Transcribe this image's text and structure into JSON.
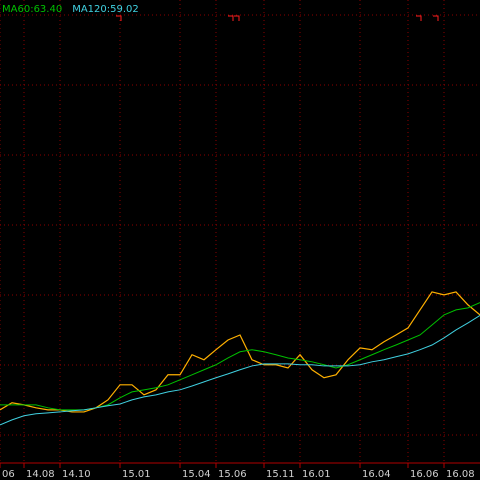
{
  "chart_data": {
    "type": "line",
    "categories": [
      "06",
      null,
      "14.08",
      null,
      null,
      "14.10",
      null,
      null,
      null,
      null,
      "15.01",
      null,
      null,
      null,
      null,
      "15.04",
      null,
      null,
      "15.06",
      null,
      null,
      null,
      "15.11",
      null,
      null,
      "16.01",
      null,
      null,
      null,
      null,
      "16.04",
      null,
      null,
      null,
      "16.06",
      null,
      null,
      "16.08",
      null,
      null,
      null
    ],
    "ylim": [
      10,
      166
    ],
    "series": [
      {
        "color": "#ffb000",
        "values": [
          27.0,
          29.4,
          28.7,
          27.7,
          27.0,
          27.0,
          26.3,
          26.3,
          27.7,
          30.4,
          35.5,
          35.5,
          32.1,
          33.8,
          38.9,
          38.9,
          45.7,
          44.0,
          47.4,
          50.7,
          52.4,
          44.0,
          42.3,
          42.3,
          41.2,
          45.7,
          40.6,
          37.9,
          38.9,
          44.0,
          48.0,
          47.4,
          50.1,
          52.4,
          54.8,
          60.9,
          67.0,
          66.0,
          67.0,
          62.6,
          59.2
        ]
      },
      {
        "name": "MA60:63.40",
        "color": "#00c000",
        "values": [
          28.7,
          28.7,
          28.7,
          28.7,
          27.7,
          27.0,
          27.0,
          27.0,
          27.7,
          28.7,
          31.1,
          33.1,
          33.8,
          34.5,
          35.5,
          37.2,
          38.9,
          40.6,
          42.3,
          44.6,
          46.7,
          47.4,
          46.7,
          45.7,
          44.6,
          44.0,
          43.3,
          42.3,
          41.2,
          42.3,
          44.0,
          45.7,
          47.4,
          49.0,
          50.7,
          52.4,
          55.8,
          59.2,
          60.9,
          61.6,
          63.4
        ]
      },
      {
        "name": "MA120:59.02",
        "color": "#40d0e0",
        "values": [
          21.9,
          23.6,
          25.0,
          25.7,
          26.0,
          26.3,
          26.7,
          27.0,
          27.7,
          28.4,
          29.0,
          30.4,
          31.4,
          32.1,
          33.1,
          33.8,
          35.1,
          36.5,
          37.9,
          39.2,
          40.6,
          41.9,
          42.6,
          42.6,
          42.6,
          42.3,
          42.3,
          41.9,
          41.9,
          41.9,
          42.3,
          43.3,
          44.0,
          45.0,
          46.0,
          47.4,
          49.0,
          51.4,
          54.1,
          56.5,
          59.02
        ]
      }
    ]
  }
}
